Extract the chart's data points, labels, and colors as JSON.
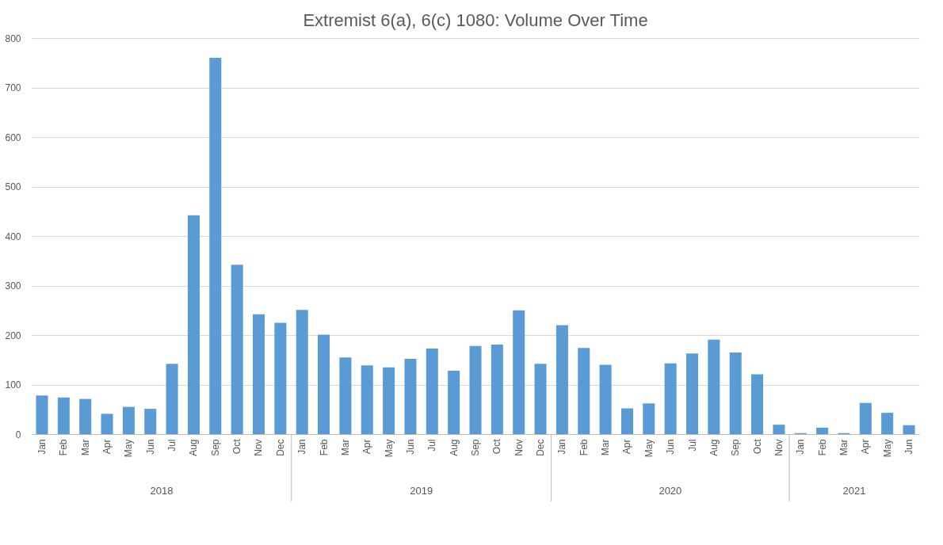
{
  "chart_data": {
    "type": "bar",
    "title": "Extremist 6(a), 6(c) 1080: Volume Over Time",
    "categories": [
      "Jan",
      "Feb",
      "Mar",
      "Apr",
      "May",
      "Jun",
      "Jul",
      "Aug",
      "Sep",
      "Oct",
      "Nov",
      "Dec",
      "Jan",
      "Feb",
      "Mar",
      "Apr",
      "May",
      "Jun",
      "Jul",
      "Aug",
      "Sep",
      "Oct",
      "Nov",
      "Dec",
      "Jan",
      "Feb",
      "Mar",
      "Apr",
      "May",
      "Jun",
      "Jul",
      "Aug",
      "Sep",
      "Oct",
      "Nov",
      "Jan",
      "Feb",
      "Mar",
      "Apr",
      "May",
      "Jun"
    ],
    "values": [
      78,
      74,
      71,
      41,
      55,
      51,
      142,
      442,
      760,
      342,
      242,
      225,
      251,
      201,
      155,
      139,
      135,
      152,
      173,
      128,
      178,
      181,
      250,
      142,
      220,
      174,
      140,
      52,
      62,
      143,
      163,
      191,
      165,
      121,
      19,
      2,
      13,
      2,
      63,
      43,
      18
    ],
    "color": "#5b9bd5",
    "ylim": [
      0,
      800
    ],
    "yticks": [
      0,
      100,
      200,
      300,
      400,
      500,
      600,
      700,
      800
    ],
    "grid": "y",
    "annotations": [
      "2018",
      "2019",
      "2020",
      "2021"
    ]
  }
}
